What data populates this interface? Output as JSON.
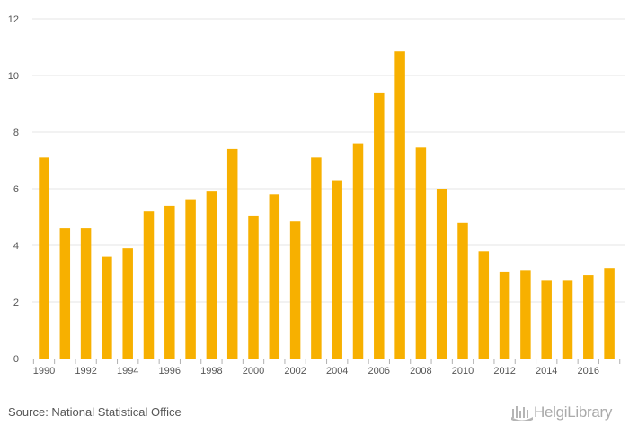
{
  "chart_data": {
    "type": "bar",
    "title": "",
    "xlabel": "",
    "ylabel": "",
    "categories": [
      "1990",
      "1991",
      "1992",
      "1993",
      "1994",
      "1995",
      "1996",
      "1997",
      "1998",
      "1999",
      "2000",
      "2001",
      "2002",
      "2003",
      "2004",
      "2005",
      "2006",
      "2007",
      "2008",
      "2009",
      "2010",
      "2011",
      "2012",
      "2013",
      "2014",
      "2015",
      "2016",
      "2017"
    ],
    "x_tick_labels": [
      "1990",
      "1992",
      "1994",
      "1996",
      "1998",
      "2000",
      "2002",
      "2004",
      "2006",
      "2008",
      "2010",
      "2012",
      "2014",
      "2016"
    ],
    "y_tick_labels": [
      "0",
      "2",
      "4",
      "6",
      "8",
      "10",
      "12"
    ],
    "values": [
      7.1,
      4.6,
      4.6,
      3.6,
      3.9,
      5.2,
      5.4,
      5.6,
      5.9,
      7.4,
      5.05,
      5.8,
      4.85,
      7.1,
      6.3,
      7.6,
      9.4,
      10.85,
      7.45,
      6.0,
      4.8,
      3.8,
      3.05,
      3.1,
      2.75,
      2.75,
      2.95,
      3.2
    ],
    "ylim": [
      0,
      12
    ],
    "grid": true,
    "legend": "none",
    "bar_color": "#f7b000"
  },
  "footer": {
    "source": "Source: National Statistical Office",
    "logo_text": "HelgiLibrary",
    "logo_icon": "helgi-library-icon"
  }
}
